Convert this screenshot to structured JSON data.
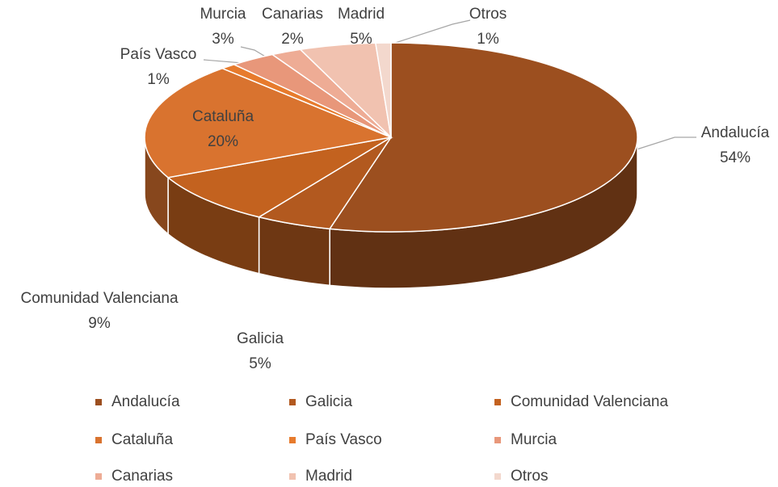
{
  "chart_data": {
    "type": "pie3d",
    "categories": [
      "Andalucía",
      "Galicia",
      "Comunidad Valenciana",
      "Cataluña",
      "País Vasco",
      "Murcia",
      "Canarias",
      "Madrid",
      "Otros"
    ],
    "values": [
      54,
      5,
      9,
      20,
      1,
      3,
      2,
      5,
      1
    ],
    "value_labels": [
      "54%",
      "5%",
      "9%",
      "20%",
      "1%",
      "3%",
      "2%",
      "5%",
      "1%"
    ],
    "colors": [
      "#9c4f1f",
      "#b2591f",
      "#c3621f",
      "#d9732f",
      "#e77b2d",
      "#e8977a",
      "#eeac95",
      "#f1c2b0",
      "#f3d8cd"
    ],
    "legend": "bottom"
  }
}
